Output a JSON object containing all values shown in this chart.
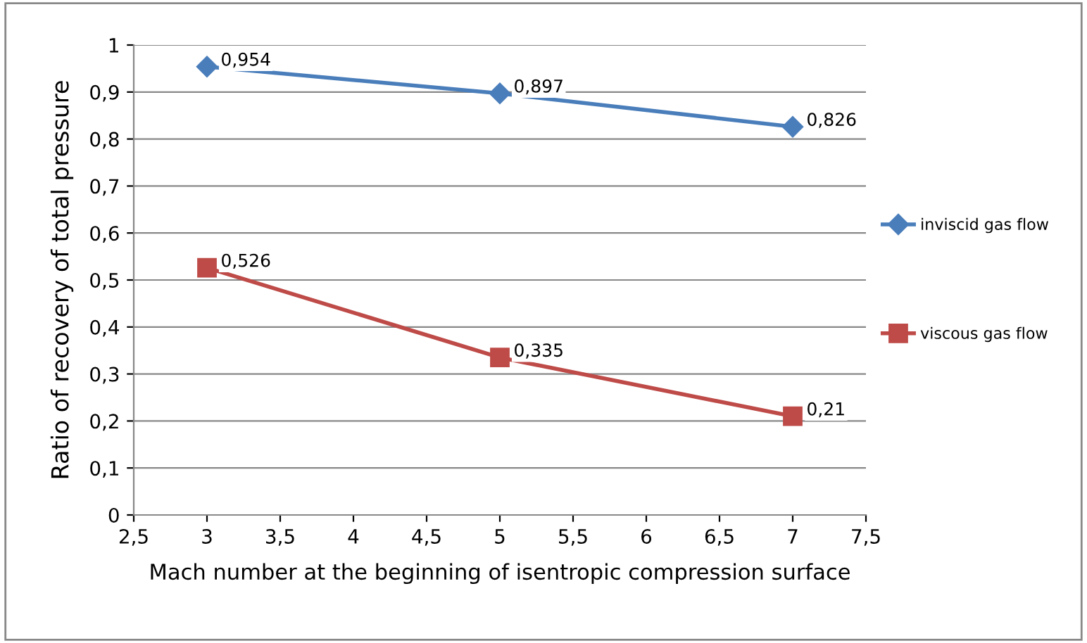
{
  "chart_data": {
    "type": "line",
    "xlabel": "Mach number at the beginning of isentropic compression surface",
    "ylabel": "Ratio of recovery of total pressure",
    "x": [
      3,
      5,
      7
    ],
    "series": [
      {
        "name": "inviscid gas flow",
        "color": "#4a7ebb",
        "marker": "diamond",
        "values": [
          0.954,
          0.897,
          0.826
        ],
        "value_labels": [
          "0,954",
          "0,897",
          "0,826"
        ]
      },
      {
        "name": "viscous gas flow",
        "color": "#be4b48",
        "marker": "square",
        "values": [
          0.526,
          0.335,
          0.21
        ],
        "value_labels": [
          "0,526",
          "0,335",
          "0,21"
        ]
      }
    ],
    "xlim": [
      2.5,
      7.5
    ],
    "xticks": [
      {
        "value": 2.5,
        "label": "2,5"
      },
      3,
      {
        "value": 3.5,
        "label": "3,5"
      },
      4,
      {
        "value": 4.5,
        "label": "4,5"
      },
      5,
      {
        "value": 5.5,
        "label": "5,5"
      },
      6,
      {
        "value": 6.5,
        "label": "6,5"
      },
      7,
      {
        "value": 7.5,
        "label": "7,5"
      }
    ],
    "ylim": [
      0,
      1
    ],
    "yticks": [
      0,
      {
        "value": 0.1,
        "label": "0,1"
      },
      {
        "value": 0.2,
        "label": "0,2"
      },
      {
        "value": 0.3,
        "label": "0,3"
      },
      {
        "value": 0.4,
        "label": "0,4"
      },
      {
        "value": 0.5,
        "label": "0,5"
      },
      {
        "value": 0.6,
        "label": "0,6"
      },
      {
        "value": 0.7,
        "label": "0,7"
      },
      {
        "value": 0.8,
        "label": "0,8"
      },
      {
        "value": 0.9,
        "label": "0,9"
      },
      1
    ],
    "grid": "y",
    "legend": "right",
    "line_style": "solid"
  }
}
